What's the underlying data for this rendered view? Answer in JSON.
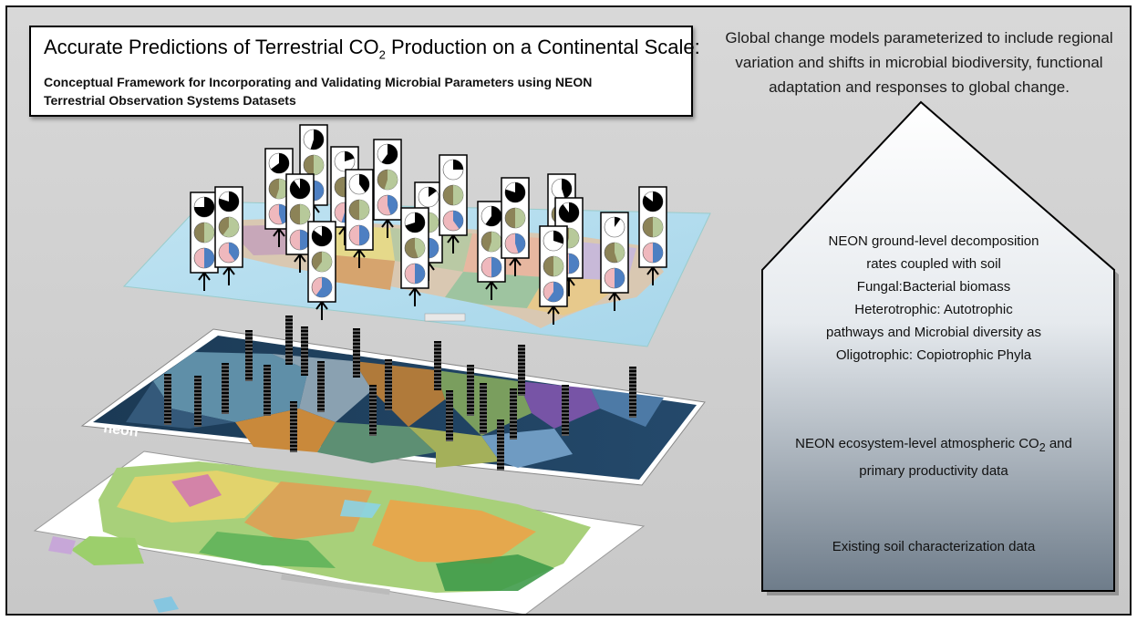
{
  "title": {
    "main_prefix": "Accurate Predictions of Terrestrial CO",
    "main_subscript": "2",
    "main_suffix": " Production on a Continental Scale:",
    "subtitle_line1": "Conceptual Framework for Incorporating and Validating Microbial Parameters using NEON",
    "subtitle_line2": "Terrestrial Observation Systems Datasets"
  },
  "top_right_text": "Global change models parameterized to include regional variation and shifts in microbial biodiversity, functional adaptation and responses to global change.",
  "house": {
    "block1_lines": [
      "NEON ground-level decomposition",
      "rates coupled with soil",
      "Fungal:Bacterial biomass",
      "Heterotrophic: Autotrophic",
      "pathways and Microbial diversity as",
      "Oligotrophic: Copiotrophic Phyla"
    ],
    "block2_prefix": "NEON ecosystem-level atmospheric CO",
    "block2_subscript": "2",
    "block2_suffix": " and",
    "block2_line2": "primary productivity data",
    "block3": "Existing soil characterization data"
  },
  "neon_logo_text": "neon",
  "colors": {
    "pie_black": "#000000",
    "pie_green": "#b7c99a",
    "pie_olive": "#8c8357",
    "pie_pink": "#efb8bd",
    "pie_blue": "#4d7fc2",
    "house_top": "#ffffff",
    "house_bottom": "#6e7c8a"
  },
  "indicator_pies": [
    {
      "top_black": 0.75,
      "mid_green": 0.5,
      "bottom_blue": 0.5
    },
    {
      "top_black": 0.8,
      "mid_green": 0.6,
      "bottom_blue": 0.4
    },
    {
      "top_black": 0.65,
      "mid_green": 0.55,
      "bottom_blue": 0.45
    },
    {
      "top_black": 0.55,
      "mid_green": 0.5,
      "bottom_blue": 0.5
    },
    {
      "top_black": 0.2,
      "mid_green": 0.45,
      "bottom_blue": 0.55
    },
    {
      "top_black": 0.9,
      "mid_green": 0.5,
      "bottom_blue": 0.5
    },
    {
      "top_black": 0.6,
      "mid_green": 0.55,
      "bottom_blue": 0.45
    },
    {
      "top_black": 0.4,
      "mid_green": 0.5,
      "bottom_blue": 0.5
    },
    {
      "top_black": 0.85,
      "mid_green": 0.6,
      "bottom_blue": 0.6
    },
    {
      "top_black": 0.15,
      "mid_green": 0.5,
      "bottom_blue": 0.5
    },
    {
      "top_black": 0.7,
      "mid_green": 0.45,
      "bottom_blue": 0.5
    },
    {
      "top_black": 0.25,
      "mid_green": 0.5,
      "bottom_blue": 0.4
    },
    {
      "top_black": 0.6,
      "mid_green": 0.55,
      "bottom_blue": 0.5
    },
    {
      "top_black": 0.8,
      "mid_green": 0.5,
      "bottom_blue": 0.45
    },
    {
      "top_black": 0.45,
      "mid_green": 0.5,
      "bottom_blue": 0.55
    },
    {
      "top_black": 0.9,
      "mid_green": 0.55,
      "bottom_blue": 0.5
    },
    {
      "top_black": 0.3,
      "mid_green": 0.5,
      "bottom_blue": 0.6
    },
    {
      "top_black": 0.1,
      "mid_green": 0.45,
      "bottom_blue": 0.5
    },
    {
      "top_black": 0.85,
      "mid_green": 0.5,
      "bottom_blue": 0.5
    }
  ]
}
